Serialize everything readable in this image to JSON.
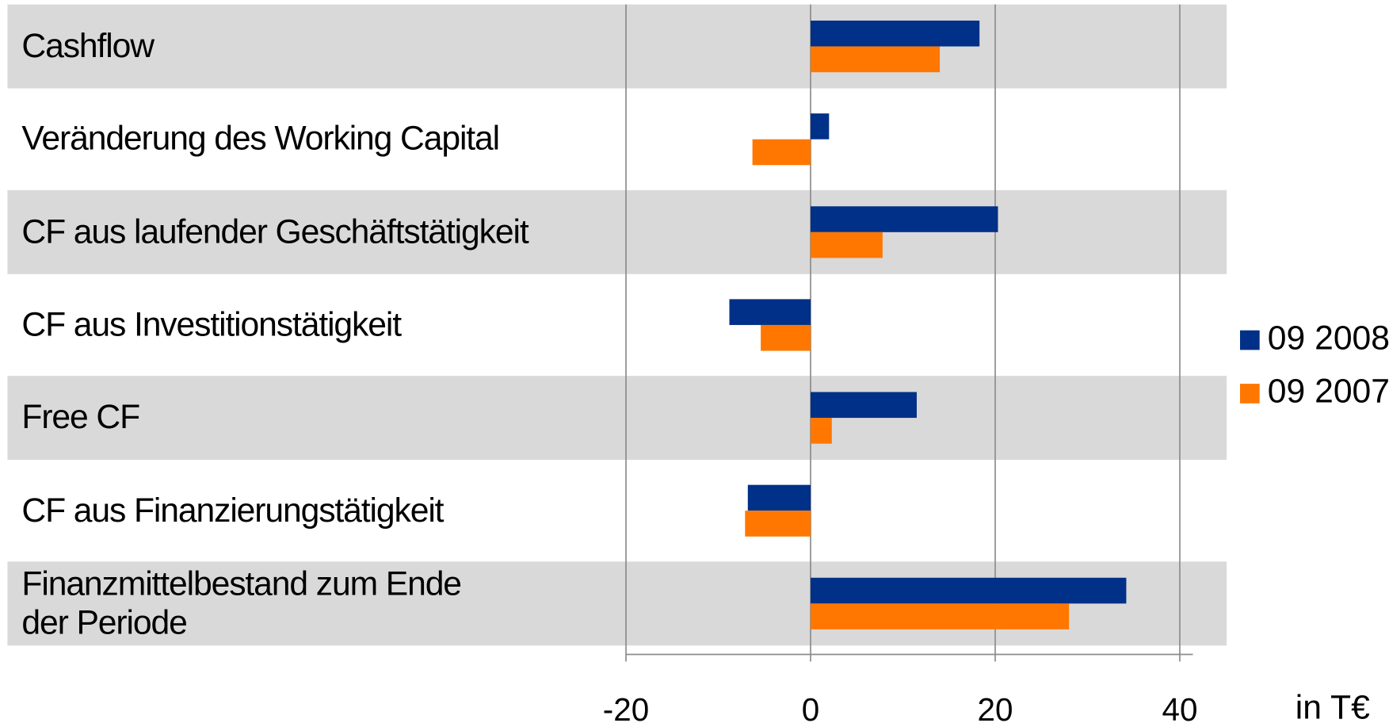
{
  "chart_data": {
    "type": "barh",
    "categories": [
      "Cashflow",
      "Veränderung des Working Capital",
      "CF aus laufender Geschäftstätigkeit",
      "CF aus Investitionstätigkeit",
      "Free CF",
      "CF aus Finanzierungstätigkeit",
      "Finanzmittelbestand zum Ende\nder Periode"
    ],
    "series": [
      {
        "name": "09 2008",
        "color": "#003087",
        "values": [
          18.3,
          2.0,
          20.3,
          -8.8,
          11.5,
          -6.8,
          34.2
        ]
      },
      {
        "name": "09 2007",
        "color": "#ff7700",
        "values": [
          14.0,
          -6.3,
          7.8,
          -5.4,
          2.3,
          -7.1,
          28.0
        ]
      }
    ],
    "xlim": [
      -20,
      44.5
    ],
    "xticks": [
      -20,
      0,
      20,
      40
    ],
    "x_label": "in T€",
    "grid": true,
    "legend": "right"
  }
}
